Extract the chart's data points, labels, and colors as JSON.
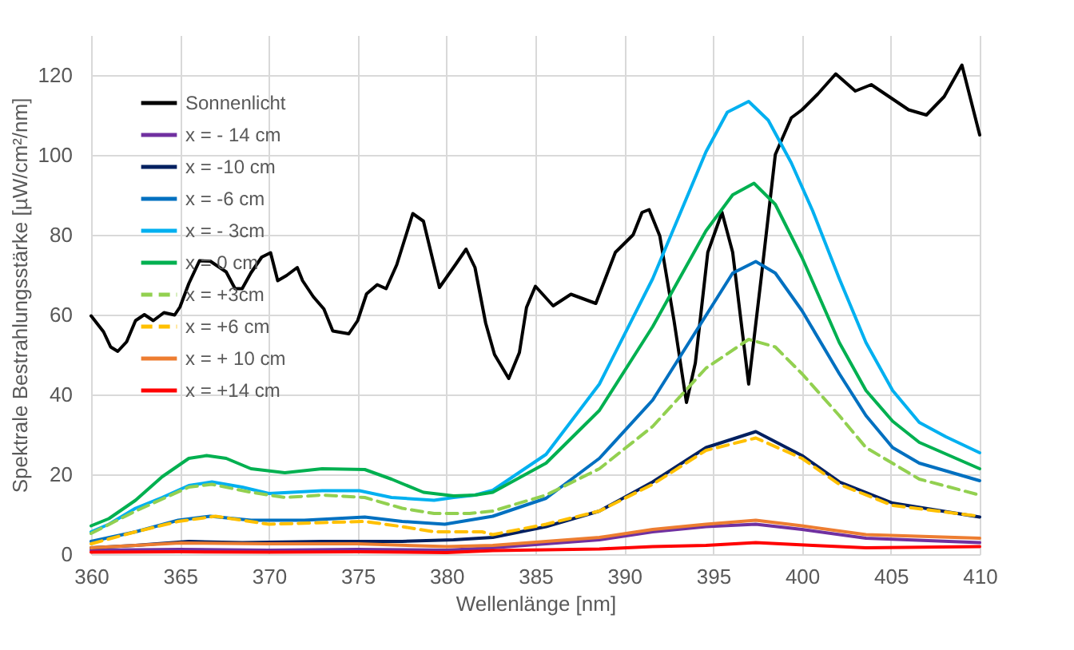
{
  "chart_data": {
    "type": "line",
    "xlabel": "Wellenlänge [nm]",
    "ylabel": "Spektrale Bestrahlungsstärke [µW/cm²/nm]",
    "xlim": [
      360,
      410
    ],
    "xticks": [
      360,
      365,
      370,
      375,
      380,
      385,
      390,
      395,
      400,
      405,
      410
    ],
    "ylim": [
      0,
      130
    ],
    "yticks": [
      0,
      20,
      40,
      60,
      80,
      100,
      120
    ],
    "grid": true,
    "legend": "top left",
    "marker": "none",
    "series": [
      {
        "name": "Sonnenlicht",
        "color": "#000000",
        "line_style": "solid",
        "x": [
          360,
          360.7,
          361.1,
          361.5,
          362,
          362.5,
          363,
          363.5,
          364.1,
          364.7,
          365,
          365.5,
          366.1,
          366.7,
          367.6,
          368.1,
          368.5,
          369,
          369.6,
          370.1,
          370.5,
          371,
          371.6,
          371.9,
          372.5,
          373.1,
          373.6,
          374.5,
          375,
          375.5,
          376.1,
          376.6,
          377.2,
          378.1,
          378.7,
          379.6,
          380.5,
          381.1,
          381.6,
          382.2,
          382.7,
          383.5,
          384.1,
          384.5,
          385,
          386,
          387,
          388.4,
          389.5,
          390.5,
          391,
          391.4,
          392,
          392.8,
          393.5,
          394,
          394.7,
          395.5,
          396.1,
          397,
          397.7,
          398.5,
          399.4,
          400,
          400.9,
          401.9,
          403,
          403.9,
          406,
          407,
          408,
          409,
          410
        ],
        "values": [
          59.7,
          55.7,
          51.9,
          50.8,
          53.2,
          58.5,
          60,
          58.5,
          60.5,
          59.9,
          61.9,
          67.8,
          73.5,
          73.4,
          70.7,
          66.5,
          66.5,
          70.5,
          74.4,
          75.5,
          68.5,
          69.8,
          71.8,
          68.5,
          64.5,
          61.4,
          55.9,
          55.2,
          58.5,
          65.2,
          67.5,
          66.5,
          72.5,
          85.3,
          83.4,
          66.8,
          72.5,
          76.4,
          71.8,
          57.9,
          50,
          44,
          50.5,
          61.8,
          67.1,
          62.2,
          65.1,
          62.8,
          75.6,
          80,
          85.6,
          86.3,
          79.7,
          58.5,
          38,
          47.9,
          75.6,
          85.6,
          75.6,
          42.6,
          69,
          100.1,
          109.3,
          111.3,
          115.3,
          120.3,
          116,
          117.6,
          111.3,
          110,
          114.6,
          122.5,
          105
        ]
      },
      {
        "name": "x = - 14 cm",
        "color": "#7030a0",
        "line_style": "solid",
        "x": [
          360,
          365,
          370,
          375,
          380,
          382.6,
          388.6,
          391.6,
          394.6,
          397.4,
          400,
          403.6,
          410
        ],
        "values": [
          1,
          1.2,
          1,
          1.2,
          1,
          1.6,
          3.6,
          5.6,
          6.9,
          7.5,
          6.2,
          4,
          2.9
        ]
      },
      {
        "name": "x = -10 cm",
        "color": "#002060",
        "line_style": "solid",
        "x": [
          360,
          362.5,
          365.5,
          368.5,
          373,
          377.5,
          380.4,
          382.6,
          385.6,
          388.6,
          391.6,
          394.6,
          397.4,
          400,
          402.1,
          405.1,
          410
        ],
        "values": [
          1.6,
          2.2,
          3.2,
          2.9,
          3.2,
          3.2,
          3.6,
          4.2,
          6.9,
          10.8,
          18.1,
          26.7,
          30.7,
          24.7,
          18.1,
          12.8,
          9.3
        ]
      },
      {
        "name": "x = -6 cm",
        "color": "#0070c0",
        "line_style": "solid",
        "x": [
          360,
          362.5,
          364.9,
          366.7,
          369,
          372,
          375.4,
          377.5,
          379.9,
          382.6,
          385.6,
          388.6,
          391.6,
          394.6,
          396.1,
          397.4,
          398.5,
          400,
          402.1,
          403.6,
          405.1,
          406.6,
          410
        ],
        "values": [
          3.2,
          5.6,
          8.5,
          9.5,
          8.5,
          8.5,
          9.3,
          8.2,
          7.5,
          9.5,
          14,
          24,
          38.6,
          59.8,
          70.4,
          73.3,
          70.4,
          61,
          45.2,
          34.7,
          26.7,
          22.8,
          18.4
        ]
      },
      {
        "name": "x = - 3cm",
        "color": "#00b0f0",
        "line_style": "solid",
        "x": [
          360,
          361,
          362.5,
          364,
          365.5,
          366.8,
          368.5,
          370,
          373,
          375.1,
          376.9,
          379.3,
          380.4,
          381.6,
          382.6,
          385.6,
          388.6,
          391.6,
          394.6,
          395.8,
          397,
          398.1,
          399.4,
          400.6,
          402.1,
          403.6,
          405.1,
          406.6,
          408.1,
          410
        ],
        "values": [
          5.6,
          7.5,
          11.5,
          14.2,
          17.2,
          18.1,
          16.8,
          15.2,
          15.9,
          15.9,
          14.2,
          13.5,
          14.2,
          14.8,
          16,
          25,
          42.6,
          69,
          100.8,
          110.7,
          113.4,
          108.7,
          98,
          86,
          69,
          53,
          41,
          33,
          29.4,
          25.4
        ]
      },
      {
        "name": "x = 0 cm",
        "color": "#00b050",
        "line_style": "solid",
        "x": [
          360,
          361,
          362.5,
          364,
          365.5,
          366.5,
          367.6,
          369,
          370.9,
          373,
          375.4,
          376.9,
          378.7,
          380.4,
          381.6,
          382.6,
          385.6,
          388.6,
          391.6,
          394.6,
          396.1,
          397.3,
          398.5,
          400,
          402.1,
          403.6,
          405.1,
          406.6,
          410
        ],
        "values": [
          7.1,
          8.9,
          13.5,
          19.4,
          24,
          24.7,
          24,
          21.4,
          20.4,
          21.4,
          21.2,
          18.8,
          15.5,
          14.6,
          14.8,
          15.5,
          22.8,
          36,
          57,
          81,
          90,
          92.9,
          87.6,
          74.3,
          53,
          41,
          33.3,
          28,
          21.4
        ]
      },
      {
        "name": "x = +3cm",
        "color": "#92d050",
        "line_style": "dashed",
        "x": [
          360,
          362.5,
          365.5,
          366.8,
          369,
          370.9,
          373,
          375.4,
          377.5,
          379.3,
          381.3,
          382.6,
          385.6,
          388.6,
          391.6,
          394.6,
          397,
          398.5,
          400,
          402.1,
          403.6,
          406.6,
          410
        ],
        "values": [
          5.2,
          10.8,
          16.8,
          17.5,
          15.5,
          14.2,
          14.8,
          14.2,
          11.5,
          10.2,
          10.2,
          10.8,
          14.8,
          21.4,
          32,
          46.6,
          53.8,
          51.9,
          45.2,
          34.7,
          26.7,
          18.8,
          14.8
        ]
      },
      {
        "name": "x = +6 cm",
        "color": "#ffc000",
        "line_style": "dashed",
        "x": [
          360,
          362.5,
          364.9,
          367,
          370,
          373,
          375.4,
          377.5,
          379.3,
          382,
          382.6,
          385.6,
          388.6,
          391.6,
          394.6,
          397.4,
          400,
          402.1,
          405.1,
          410
        ],
        "values": [
          2.6,
          5.6,
          8.2,
          9.5,
          7.5,
          7.9,
          8.2,
          6.9,
          5.6,
          5.6,
          4.9,
          7.5,
          10.8,
          17.5,
          26,
          29.1,
          24,
          17.5,
          12.2,
          9.5
        ]
      },
      {
        "name": "x = + 10 cm",
        "color": "#ed7d31",
        "line_style": "solid",
        "x": [
          360,
          365,
          370,
          375,
          380,
          382.6,
          388.6,
          391.6,
          394.6,
          397.4,
          400,
          403.6,
          410
        ],
        "values": [
          1.6,
          2.8,
          2.6,
          2.6,
          1.9,
          2.2,
          4.2,
          6.2,
          7.5,
          8.5,
          7.1,
          4.9,
          4
        ]
      },
      {
        "name": "x  = +14 cm",
        "color": "#ff0000",
        "line_style": "solid",
        "x": [
          360,
          365,
          370,
          375,
          380,
          382.6,
          388.6,
          391.6,
          394.6,
          397.4,
          400.6,
          403.6,
          410
        ],
        "values": [
          0.5,
          0.6,
          0.5,
          0.6,
          0.4,
          0.9,
          1.3,
          1.9,
          2.2,
          2.9,
          2.2,
          1.6,
          1.9
        ]
      }
    ]
  }
}
